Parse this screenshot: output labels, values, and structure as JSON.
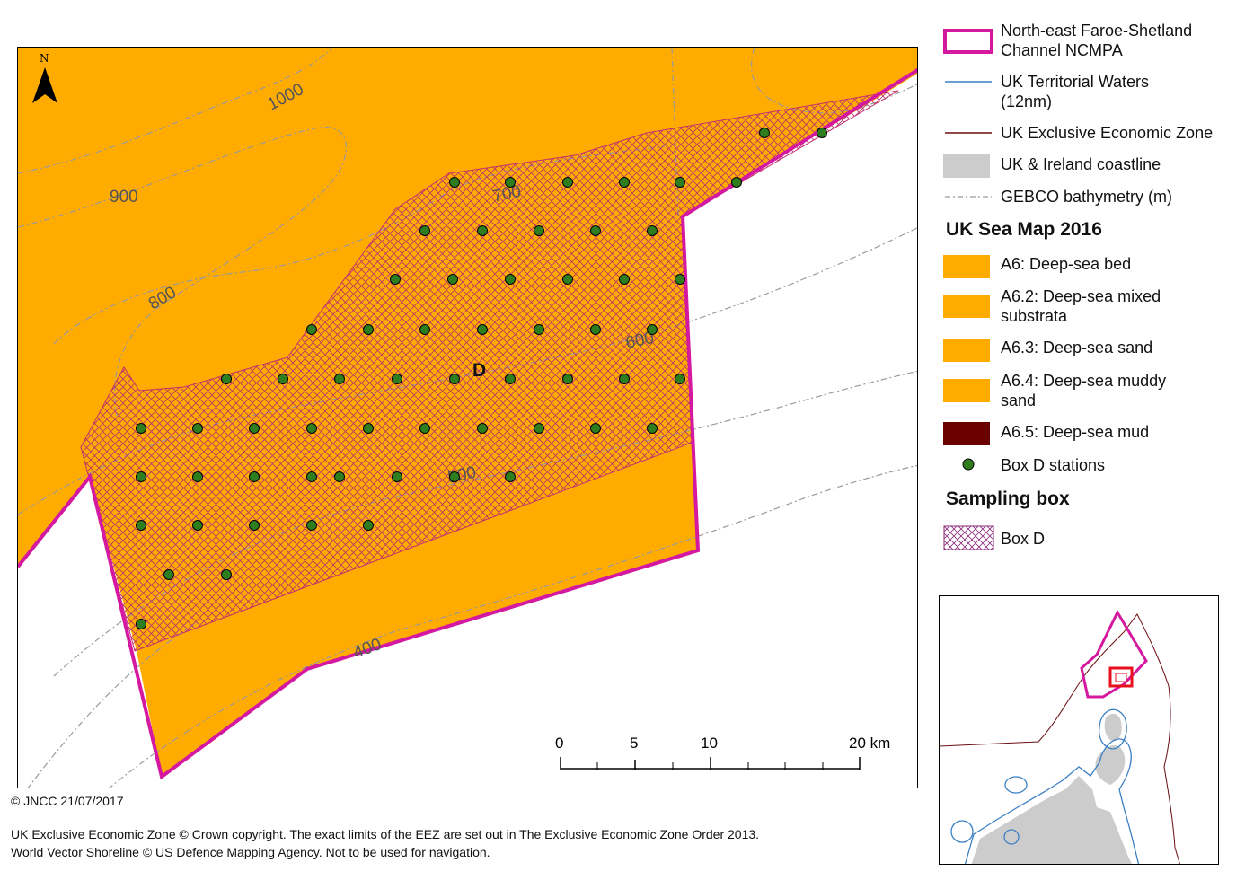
{
  "map": {
    "north_label": "N",
    "box_label": "D",
    "contour_labels": [
      "1000",
      "900",
      "800",
      "700",
      "600",
      "500",
      "400"
    ],
    "scale_bar": {
      "labels": [
        "0",
        "5",
        "10",
        "20 km"
      ]
    }
  },
  "legend": {
    "items": [
      {
        "label": "North-east Faroe-Shetland Channel NCMPA",
        "line1": "North-east Faroe-Shetland",
        "line2": "Channel NCMPA",
        "color": "#d4189f"
      },
      {
        "label": "UK Territorial Waters (12nm)",
        "line1": "UK Territorial Waters",
        "line2": "(12nm)",
        "color": "#3a7fc4"
      },
      {
        "label": "UK Exclusive Economic Zone",
        "color": "#6b0d12"
      },
      {
        "label": "UK & Ireland coastline",
        "color": "#cccccc"
      },
      {
        "label": "GEBCO bathymetry (m)",
        "color": "#9a9a9a"
      }
    ],
    "sea_map_heading": "UK Sea Map 2016",
    "sea_map_items": [
      {
        "line1": "A6: Deep-sea bed",
        "line2": "",
        "color": "#ffab00"
      },
      {
        "line1": "A6.2: Deep-sea mixed",
        "line2": "substrata",
        "color": "#ffab00"
      },
      {
        "line1": "A6.3: Deep-sea sand",
        "line2": "",
        "color": "#ffab00"
      },
      {
        "line1": "A6.4: Deep-sea muddy",
        "line2": "sand",
        "color": "#ffab00"
      },
      {
        "line1": "A6.5: Deep-sea mud",
        "line2": "",
        "color": "#6b0000"
      }
    ],
    "stations_label": "Box D stations",
    "stations_color": "#2e7d1e",
    "sampling_heading": "Sampling box",
    "sampling_item": "Box D"
  },
  "footer": {
    "copyright": "© JNCC 21/07/2017",
    "line1": "UK Exclusive Economic Zone © Crown copyright. The exact limits of the EEZ are set out in The Exclusive Economic Zone Order 2013.",
    "line2": "World Vector Shoreline © US Defence Mapping Agency. Not to be used for navigation."
  }
}
